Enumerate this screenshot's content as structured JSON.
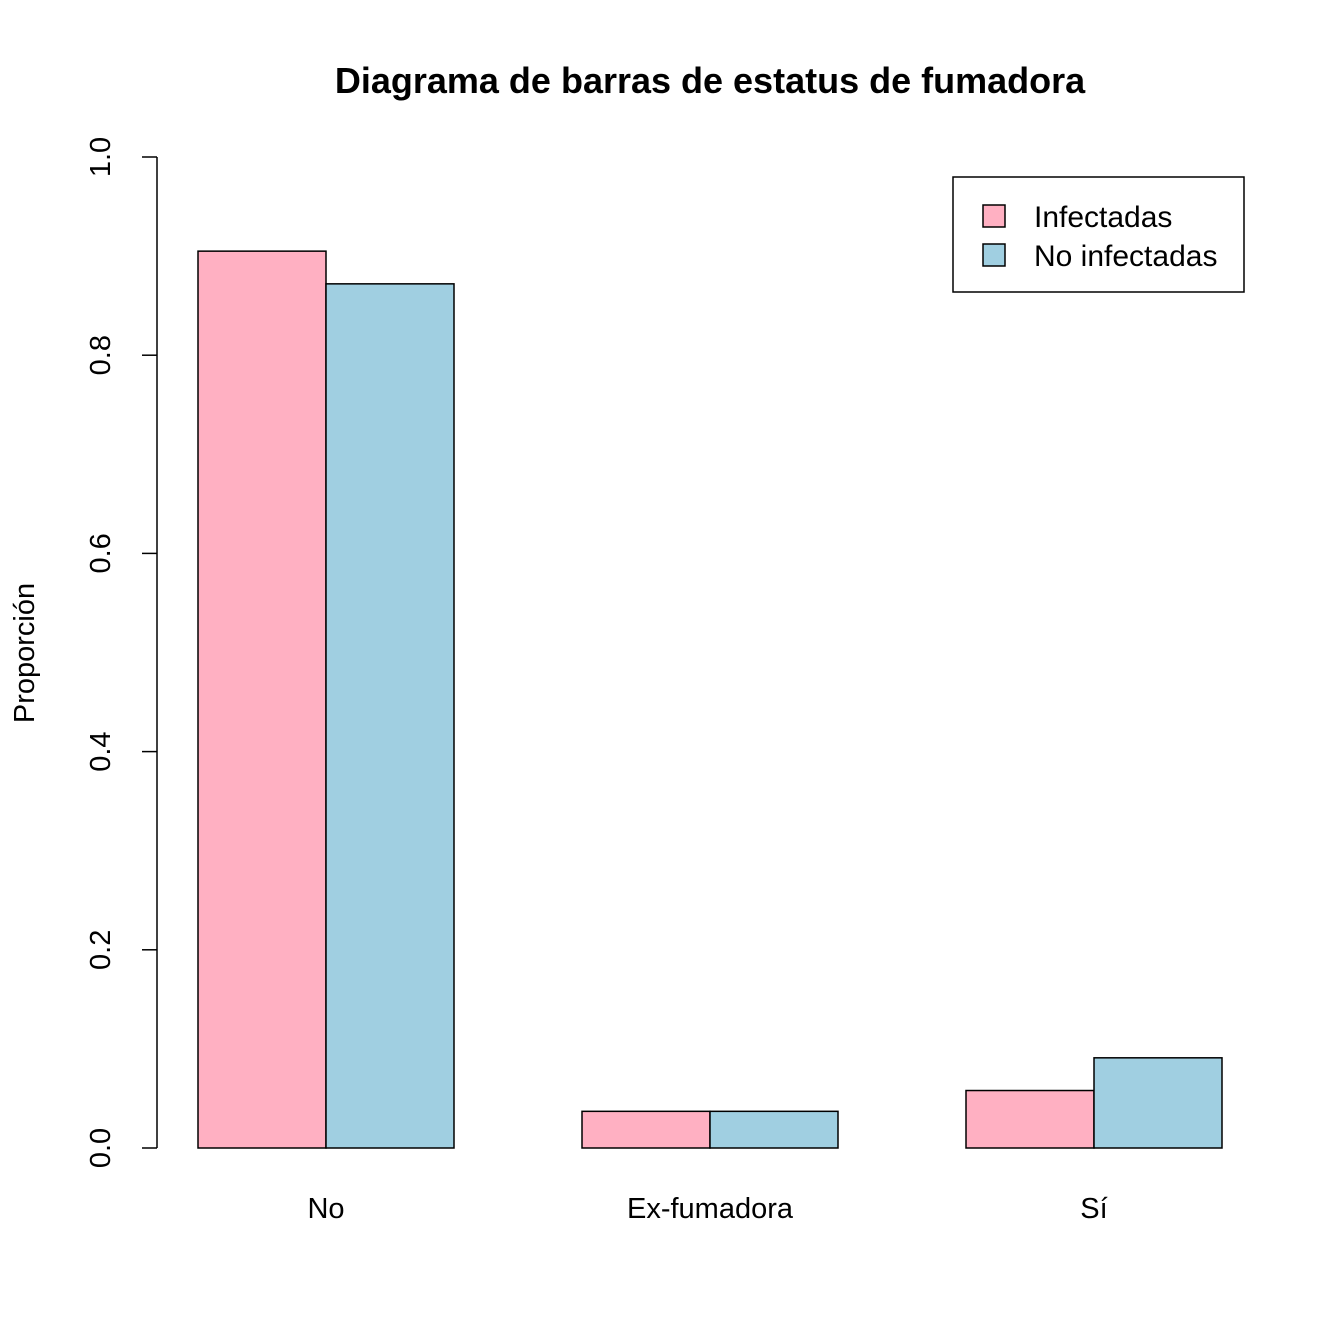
{
  "chart_data": {
    "type": "bar",
    "title": "Diagrama de barras de estatus de fumadora",
    "xlabel": "",
    "ylabel": "Proporción",
    "categories": [
      "No",
      "Ex-fumadora",
      "Sí"
    ],
    "series": [
      {
        "name": "Infectadas",
        "color": "#FFB0C2",
        "values": [
          0.905,
          0.037,
          0.058
        ]
      },
      {
        "name": "No infectadas",
        "color": "#A0CFE1",
        "values": [
          0.872,
          0.037,
          0.091
        ]
      }
    ],
    "ylim": [
      0,
      1
    ],
    "yticks": [
      "0.0",
      "0.2",
      "0.4",
      "0.6",
      "0.8",
      "1.0"
    ],
    "legend_position": "top-right",
    "grid": false
  }
}
